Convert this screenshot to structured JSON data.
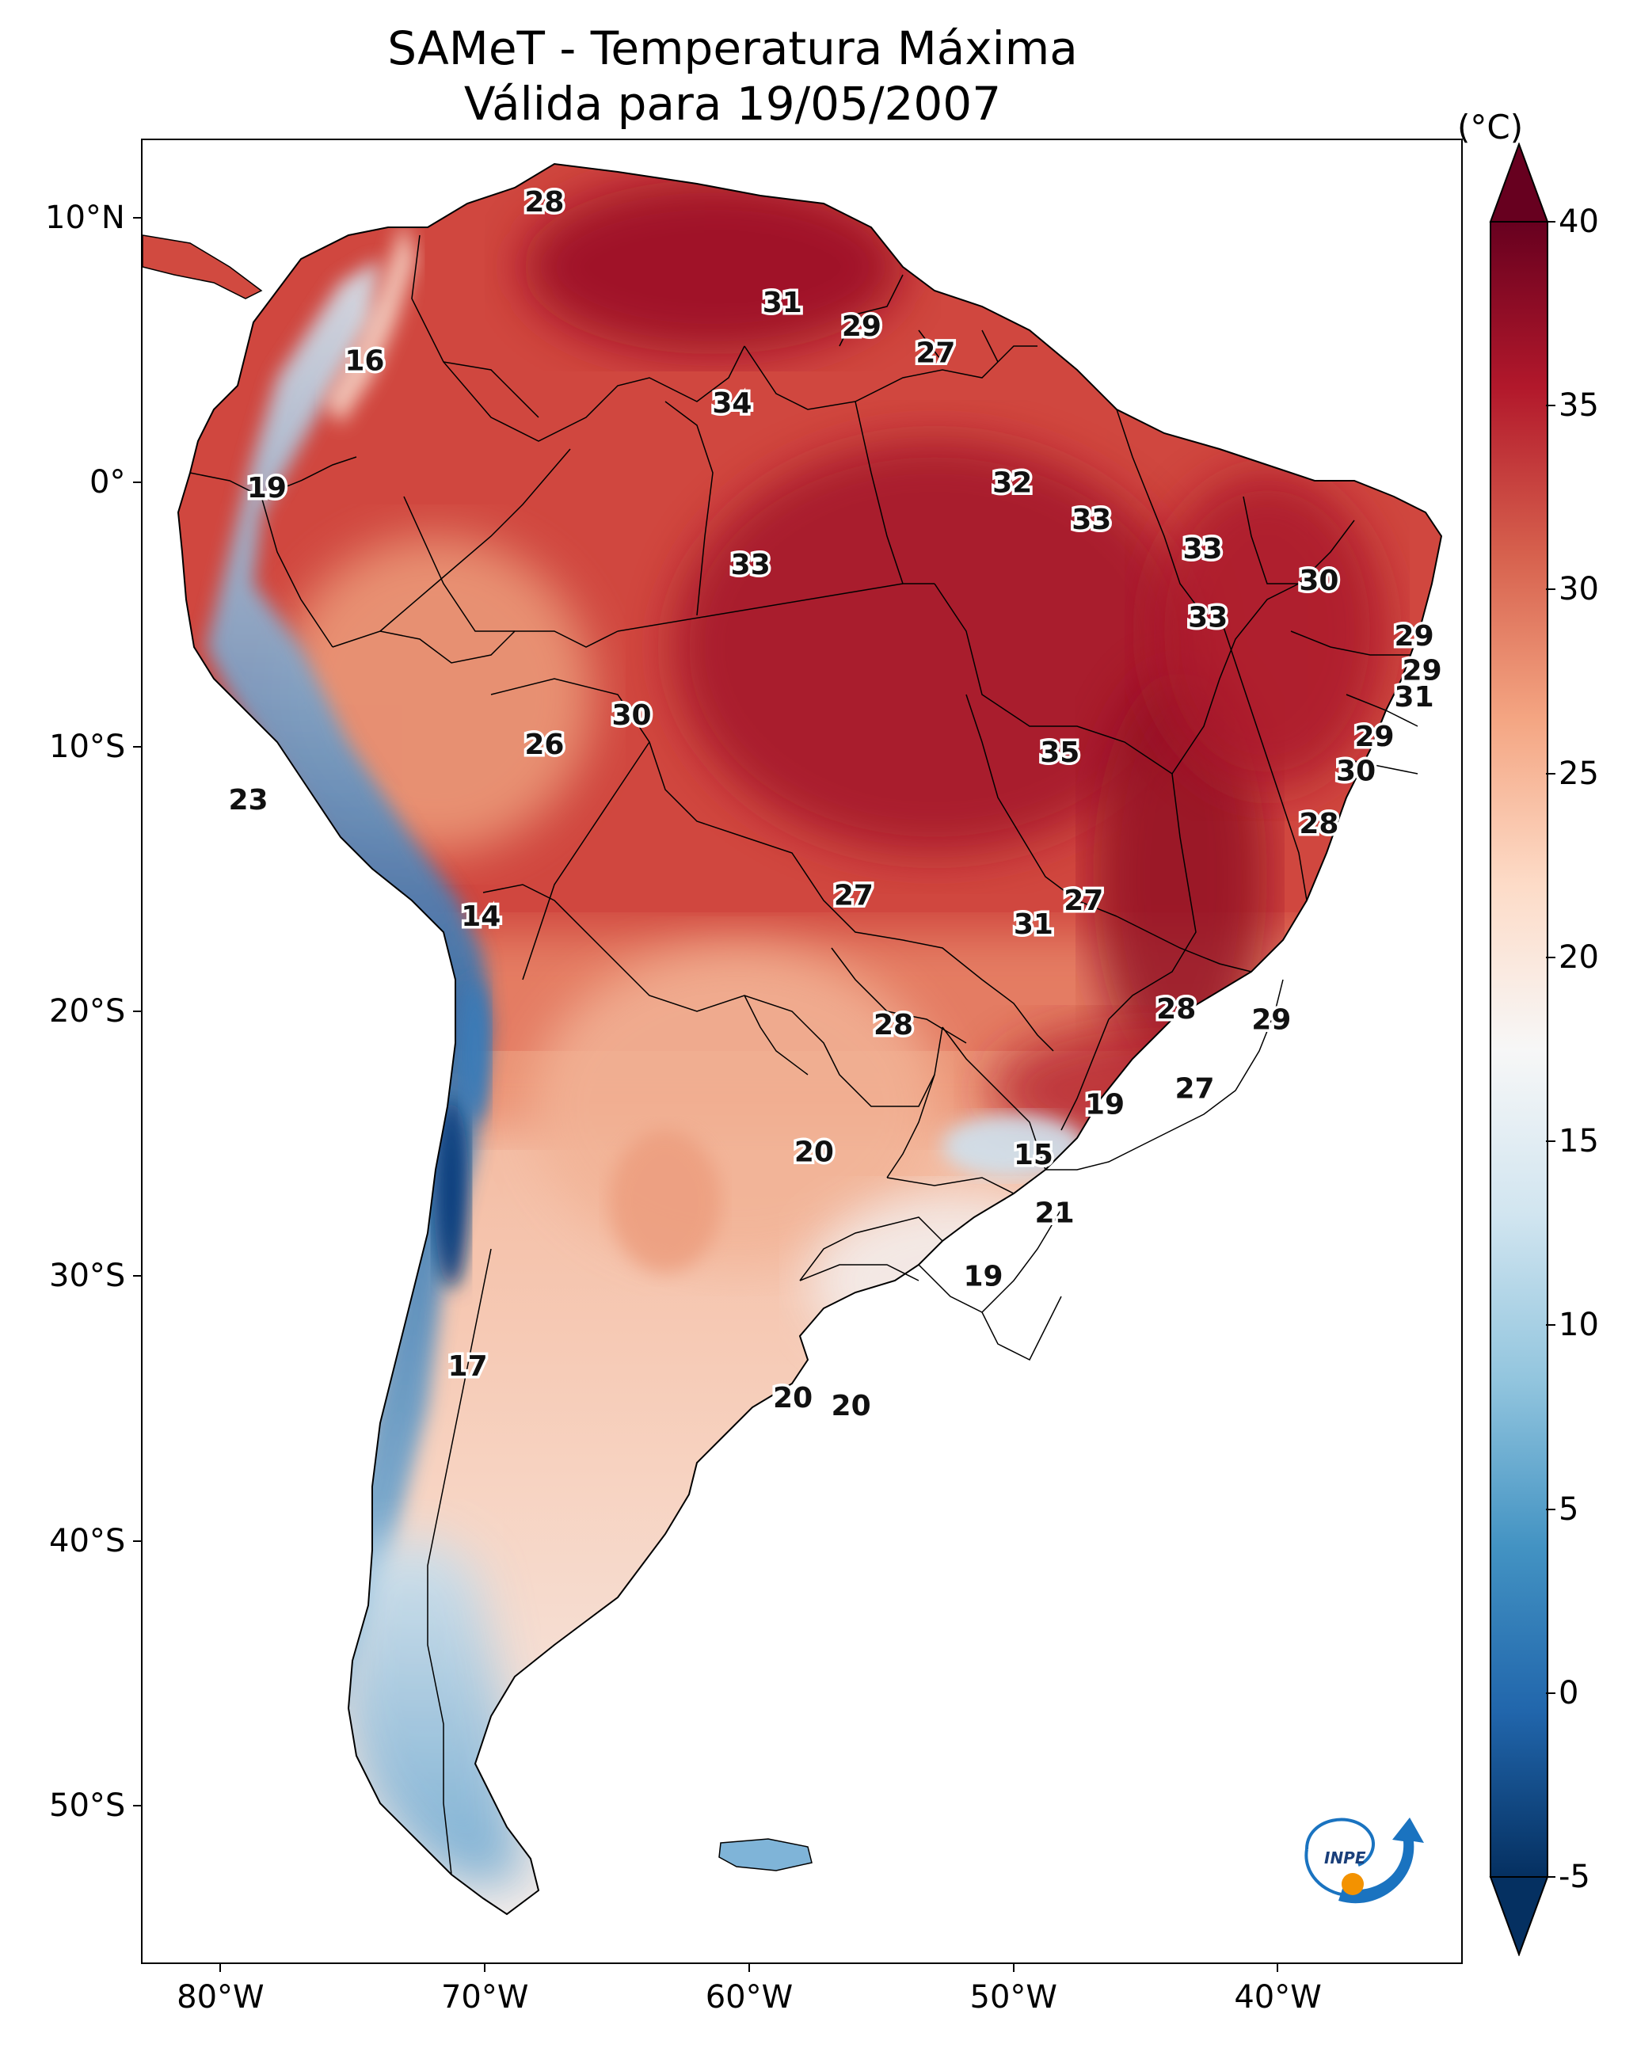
{
  "title": {
    "line1": "SAMeT - Temperatura Máxima",
    "line2": "Válida para 19/05/2007"
  },
  "map": {
    "lon_range": [
      -83,
      -33
    ],
    "lat_range": [
      -56,
      13
    ],
    "x_ticks": [
      {
        "lon": -80,
        "label": "80°W"
      },
      {
        "lon": -70,
        "label": "70°W"
      },
      {
        "lon": -60,
        "label": "60°W"
      },
      {
        "lon": -50,
        "label": "50°W"
      },
      {
        "lon": -40,
        "label": "40°W"
      }
    ],
    "y_ticks": [
      {
        "lat": 10,
        "label": "10°N"
      },
      {
        "lat": 0,
        "label": "0°"
      },
      {
        "lat": -10,
        "label": "10°S"
      },
      {
        "lat": -20,
        "label": "20°S"
      },
      {
        "lat": -30,
        "label": "30°S"
      },
      {
        "lat": -40,
        "label": "40°S"
      },
      {
        "lat": -50,
        "label": "50°S"
      }
    ],
    "stations": [
      {
        "lon": -67.8,
        "lat": 10.6,
        "value": "28"
      },
      {
        "lon": -74.6,
        "lat": 4.6,
        "value": "16"
      },
      {
        "lon": -78.3,
        "lat": -0.2,
        "value": "19"
      },
      {
        "lon": -60.7,
        "lat": 3.0,
        "value": "34"
      },
      {
        "lon": -58.8,
        "lat": 6.8,
        "value": "31"
      },
      {
        "lon": -55.8,
        "lat": 5.9,
        "value": "29"
      },
      {
        "lon": -53.0,
        "lat": 4.9,
        "value": "27"
      },
      {
        "lon": -50.1,
        "lat": 0.0,
        "value": "32"
      },
      {
        "lon": -47.1,
        "lat": -1.4,
        "value": "33"
      },
      {
        "lon": -60.0,
        "lat": -3.1,
        "value": "33"
      },
      {
        "lon": -42.9,
        "lat": -2.5,
        "value": "33"
      },
      {
        "lon": -38.5,
        "lat": -3.7,
        "value": "30"
      },
      {
        "lon": -42.7,
        "lat": -5.1,
        "value": "33"
      },
      {
        "lon": -34.9,
        "lat": -5.8,
        "value": "29"
      },
      {
        "lon": -34.6,
        "lat": -7.1,
        "value": "29"
      },
      {
        "lon": -34.9,
        "lat": -8.1,
        "value": "31"
      },
      {
        "lon": -64.5,
        "lat": -8.8,
        "value": "30"
      },
      {
        "lon": -67.8,
        "lat": -9.9,
        "value": "26"
      },
      {
        "lon": -48.3,
        "lat": -10.2,
        "value": "35"
      },
      {
        "lon": -36.4,
        "lat": -9.6,
        "value": "29"
      },
      {
        "lon": -37.1,
        "lat": -10.9,
        "value": "30"
      },
      {
        "lon": -38.5,
        "lat": -12.9,
        "value": "28"
      },
      {
        "lon": -79.0,
        "lat": -12.0,
        "value": "23"
      },
      {
        "lon": -70.2,
        "lat": -16.4,
        "value": "14"
      },
      {
        "lon": -56.1,
        "lat": -15.6,
        "value": "27"
      },
      {
        "lon": -47.4,
        "lat": -15.8,
        "value": "27"
      },
      {
        "lon": -49.3,
        "lat": -16.7,
        "value": "31"
      },
      {
        "lon": -54.6,
        "lat": -20.5,
        "value": "28"
      },
      {
        "lon": -43.9,
        "lat": -19.9,
        "value": "28"
      },
      {
        "lon": -40.3,
        "lat": -20.3,
        "value": "29"
      },
      {
        "lon": -46.6,
        "lat": -23.5,
        "value": "19"
      },
      {
        "lon": -43.2,
        "lat": -22.9,
        "value": "27"
      },
      {
        "lon": -57.6,
        "lat": -25.3,
        "value": "20"
      },
      {
        "lon": -49.3,
        "lat": -25.4,
        "value": "15"
      },
      {
        "lon": -48.5,
        "lat": -27.6,
        "value": "21"
      },
      {
        "lon": -51.2,
        "lat": -30.0,
        "value": "19"
      },
      {
        "lon": -70.7,
        "lat": -33.4,
        "value": "17"
      },
      {
        "lon": -58.4,
        "lat": -34.6,
        "value": "20"
      },
      {
        "lon": -56.2,
        "lat": -34.9,
        "value": "20"
      }
    ]
  },
  "colorbar": {
    "unit": "(°C)",
    "min": -5,
    "max": 40,
    "ticks": [
      "-5",
      "0",
      "5",
      "10",
      "15",
      "20",
      "25",
      "30",
      "35",
      "40"
    ],
    "colors": [
      "#053061",
      "#2166ac",
      "#4393c3",
      "#92c5de",
      "#d1e5f0",
      "#f7f7f7",
      "#fddbc7",
      "#f4a582",
      "#d6604d",
      "#b2182b",
      "#67001f"
    ]
  },
  "logo": {
    "text": "INPE",
    "colors": {
      "blue": "#1a73c0",
      "orange": "#f39200"
    }
  }
}
